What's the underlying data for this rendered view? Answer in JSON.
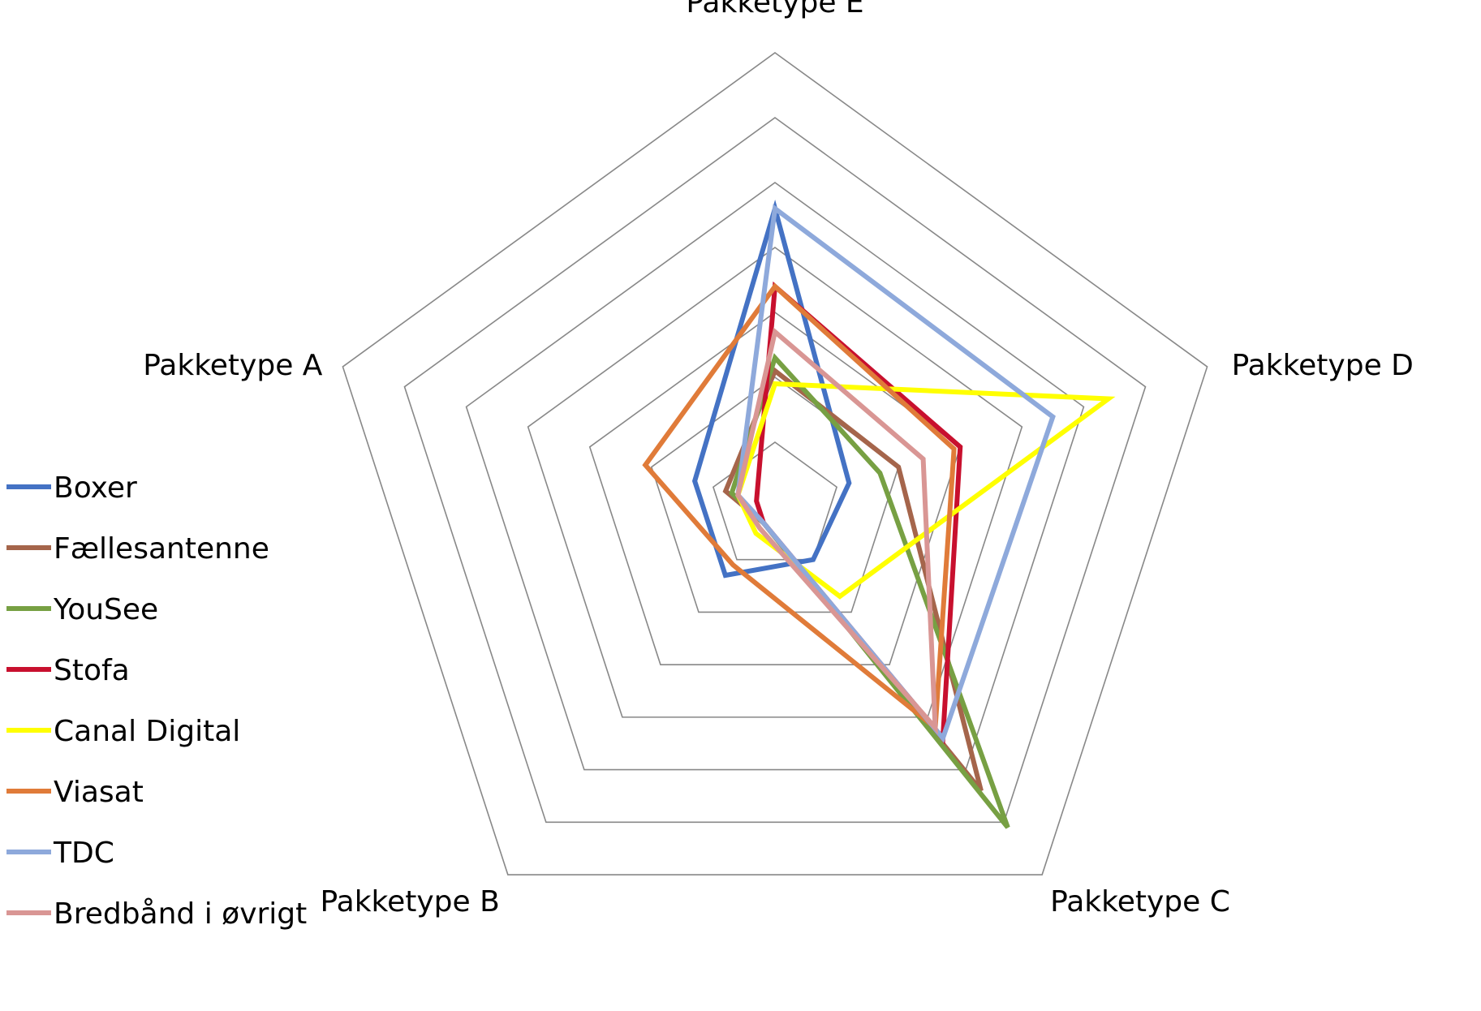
{
  "chart_data": {
    "type": "radar",
    "title": "",
    "axes": [
      "Pakketype E",
      "Pakketype D",
      "Pakketype C",
      "Pakketype B",
      "Pakketype A"
    ],
    "range": [
      0,
      7
    ],
    "rings": 7,
    "grid": true,
    "legend_position": "left",
    "series": [
      {
        "name": "Boxer",
        "color": "#4472C4",
        "values": [
          4.6,
          1.2,
          1.0,
          1.3,
          1.3
        ]
      },
      {
        "name": "Fællesantenne",
        "color": "#A5654B",
        "values": [
          2.1,
          2.0,
          5.4,
          0.3,
          0.8
        ]
      },
      {
        "name": "YouSee",
        "color": "#77A043",
        "values": [
          2.3,
          1.7,
          6.1,
          0.3,
          0.7
        ]
      },
      {
        "name": "Stofa",
        "color": "#C8102E",
        "values": [
          3.4,
          3.0,
          4.4,
          0.3,
          0.3
        ]
      },
      {
        "name": "Canal Digital",
        "color": "#FFFF00",
        "values": [
          1.9,
          5.4,
          1.7,
          0.5,
          0.6
        ]
      },
      {
        "name": "Viasat",
        "color": "#E07B39",
        "values": [
          3.4,
          2.9,
          4.2,
          1.1,
          2.1
        ]
      },
      {
        "name": "TDC",
        "color": "#8EA9DB",
        "values": [
          4.6,
          4.5,
          4.4,
          0.3,
          0.6
        ]
      },
      {
        "name": "Bredbånd i øvrigt",
        "color": "#D99694",
        "values": [
          2.7,
          2.4,
          4.2,
          0.4,
          0.6
        ]
      }
    ]
  }
}
